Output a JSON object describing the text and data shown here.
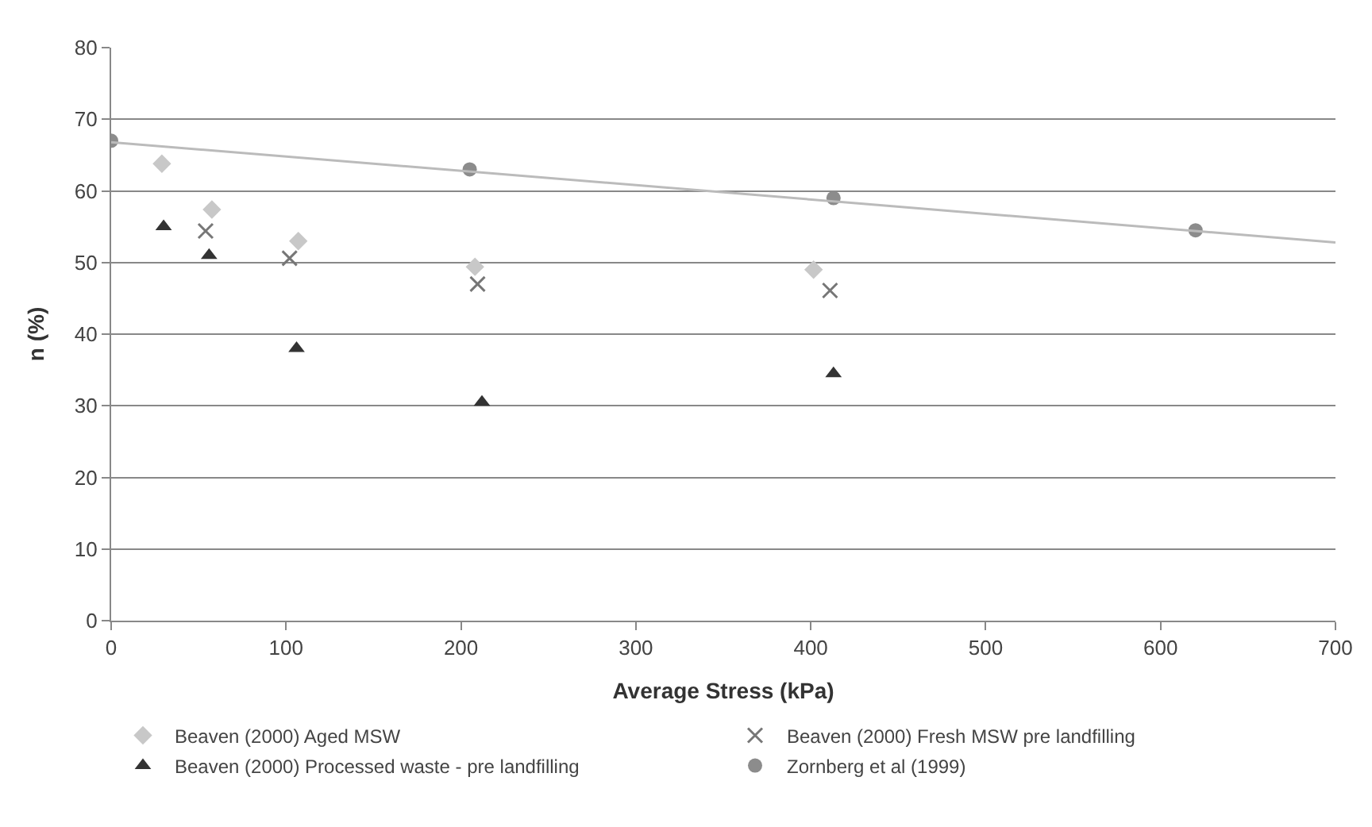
{
  "chart_data": {
    "type": "scatter",
    "xlabel": "Average Stress (kPa)",
    "ylabel": "n (%)",
    "xlim": [
      0,
      700
    ],
    "xticks": [
      0,
      100,
      200,
      300,
      400,
      500,
      600,
      700
    ],
    "ylim": [
      0,
      80
    ],
    "yticks": [
      0,
      10,
      20,
      30,
      40,
      50,
      60,
      70,
      80
    ],
    "grid": "y",
    "legend": "bottom",
    "series": [
      {
        "name": "Beaven (2000) Aged MSW",
        "color": "#c8c8c8",
        "marker": "diamond",
        "x": [
          29,
          57.6,
          107,
          208,
          401.6
        ],
        "values": [
          63.8,
          57.4,
          53,
          49.4,
          49
        ]
      },
      {
        "name": "Beaven (2000) Fresh MSW pre landfilling",
        "color": "#777777",
        "marker": "cross",
        "x": [
          54,
          102,
          209.5,
          411
        ],
        "values": [
          54.4,
          50.6,
          47,
          46.1
        ]
      },
      {
        "name": "Beaven (2000) Processed waste - pre landfilling",
        "color": "#333333",
        "marker": "triangle",
        "x": [
          30,
          56,
          106,
          212,
          413
        ],
        "values": [
          55,
          51,
          38,
          30.5,
          34.5
        ]
      },
      {
        "name": "Zornberg et al (1999)",
        "color": "#8c8c8c",
        "marker": "circle",
        "x": [
          0,
          205,
          413,
          620
        ],
        "values": [
          67,
          63,
          59,
          54.5
        ]
      },
      {
        "type": "line",
        "color": "#bbbbbb",
        "marker": "none",
        "x": [
          0,
          700
        ],
        "values": [
          66.8,
          52.8
        ]
      }
    ]
  }
}
